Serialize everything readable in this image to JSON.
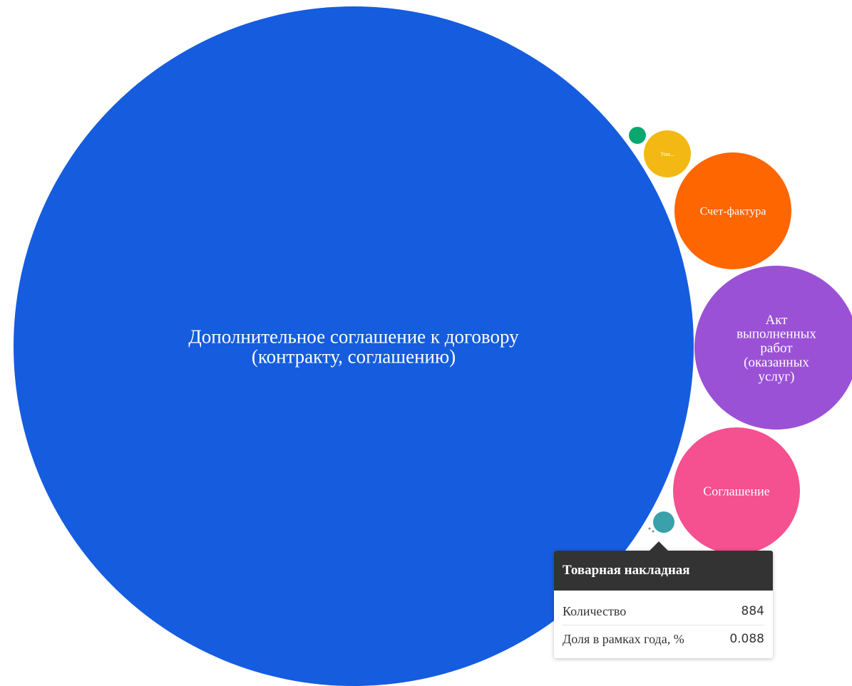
{
  "chart_data": {
    "type": "bubble",
    "title": "",
    "series": [
      {
        "name": "Дополнительное соглашение к договору (контракту, соглашению)",
        "color": "#155cdf",
        "values": []
      },
      {
        "name": "Акт выполненных работ (оказанных услуг)",
        "color": "#9b51d6",
        "values": []
      },
      {
        "name": "Соглашение",
        "color": "#f5508f",
        "values": []
      },
      {
        "name": "Счет-фактура",
        "color": "#fd6600",
        "values": []
      },
      {
        "name": "Уни...",
        "color": "#f3b814",
        "values": []
      },
      {
        "name": "",
        "color": "#0aa86f",
        "values": []
      },
      {
        "name": "Товарная накладная",
        "color": "#3aa0a9",
        "values": [
          884
        ]
      }
    ],
    "tooltip": {
      "title": "Товарная накладная",
      "rows": [
        {
          "label": "Количество",
          "value": "884"
        },
        {
          "label": "Доля в рамках года, %",
          "value": "0.088"
        }
      ]
    }
  }
}
